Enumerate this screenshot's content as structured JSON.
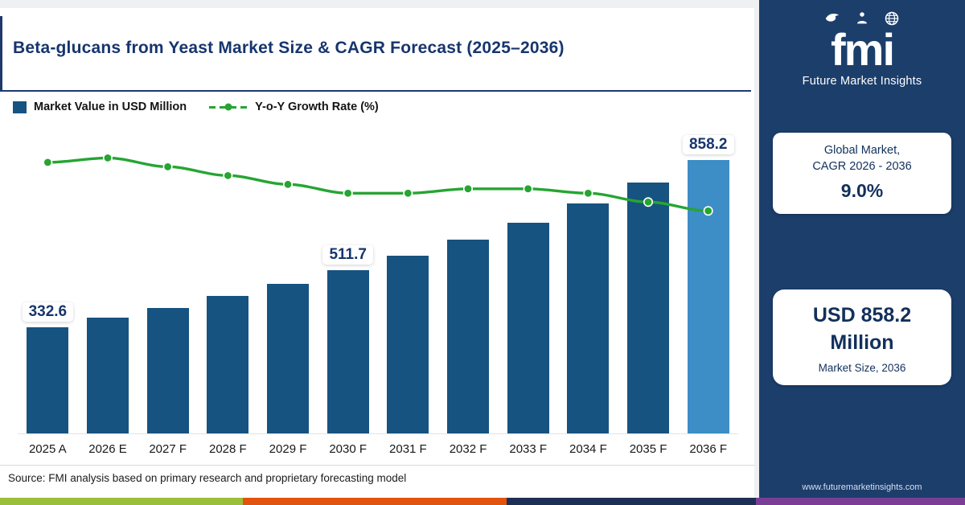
{
  "header": {
    "title": "Beta-glucans from Yeast Market Size & CAGR Forecast (2025–2036)"
  },
  "legend": {
    "bars_label": "Market Value in USD Million",
    "line_label": "Y-o-Y Growth Rate (%)"
  },
  "chart_data": {
    "type": "bar",
    "title": "Beta-glucans from Yeast Market Size & CAGR Forecast (2025–2036)",
    "categories": [
      "2025 A",
      "2026 E",
      "2027 F",
      "2028 F",
      "2029 F",
      "2030 F",
      "2031 F",
      "2032 F",
      "2033 F",
      "2034 F",
      "2035 F",
      "2036 F"
    ],
    "series": [
      {
        "name": "Market Value in USD Million",
        "type": "bar",
        "values": [
          332.6,
          362.5,
          395.1,
          430.7,
          469.4,
          511.7,
          557.8,
          608.0,
          662.7,
          722.3,
          787.3,
          858.2
        ],
        "color": "#165380",
        "last_bar_color": "#3d8dc6"
      },
      {
        "name": "Y-o-Y Growth Rate (%)",
        "type": "line",
        "values": [
          9.3,
          9.4,
          9.2,
          9.0,
          8.8,
          8.6,
          8.6,
          8.7,
          8.7,
          8.6,
          8.4,
          8.2
        ],
        "color": "#26a532"
      }
    ],
    "data_labels": {
      "0": "332.6",
      "5": "511.7",
      "11": "858.2"
    },
    "ylim": [
      0,
      900
    ],
    "legend_position": "top-left",
    "grid": false
  },
  "source": "Source: FMI analysis based on primary research and proprietary forecasting model",
  "sidebar": {
    "logo_text": "fmi",
    "logo_subtext": "Future Market Insights",
    "cagr_card": {
      "line1": "Global Market,",
      "line2": "CAGR 2026 - 2036",
      "value": "9.0%"
    },
    "size_card": {
      "value_line1": "USD 858.2",
      "value_line2": "Million",
      "label": "Market Size, 2036"
    },
    "website": "www.futuremarketinsights.com"
  },
  "colors": {
    "bar": "#165380",
    "bar_highlight": "#3d8dc6",
    "line": "#26a532",
    "title": "#17356e",
    "sidebar_bg": "#1c3e6b",
    "stripes": [
      "#9bbf3b",
      "#e25310",
      "#1d2f55",
      "#7a3e97"
    ]
  }
}
